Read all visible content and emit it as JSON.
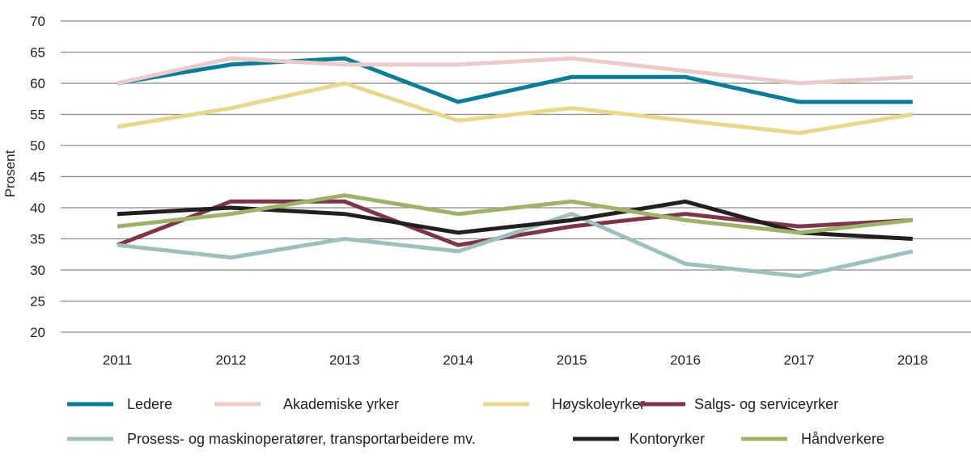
{
  "chart_data": {
    "type": "line",
    "title": "",
    "xlabel": "",
    "ylabel": "Prosent",
    "ylim": [
      20,
      70
    ],
    "yticks": [
      20,
      25,
      30,
      35,
      40,
      45,
      50,
      55,
      60,
      65,
      70
    ],
    "categories": [
      "2011",
      "2012",
      "2013",
      "2014",
      "2015",
      "2016",
      "2017",
      "2018"
    ],
    "grid": "horizontal",
    "legend_placement": "bottom",
    "series": [
      {
        "name": "Ledere",
        "color": "#0a7d96",
        "values": [
          60,
          63,
          64,
          57,
          61,
          61,
          57,
          57
        ]
      },
      {
        "name": "Akademiske yrker",
        "color": "#ebcaca",
        "values": [
          60,
          64,
          63,
          63,
          64,
          62,
          60,
          61
        ]
      },
      {
        "name": "Høyskoleyrker",
        "color": "#e8d88e",
        "values": [
          53,
          56,
          60,
          54,
          56,
          54,
          52,
          55
        ]
      },
      {
        "name": "Salgs- og serviceyrker",
        "color": "#7f3548",
        "values": [
          34,
          41,
          41,
          34,
          37,
          39,
          37,
          38
        ]
      },
      {
        "name": "Prosess- og maskinoperatører, transportarbeidere mv.",
        "color": "#9dbfbd",
        "values": [
          34,
          32,
          35,
          33,
          39,
          31,
          29,
          33
        ]
      },
      {
        "name": "Kontoryrker",
        "color": "#231f1e",
        "values": [
          39,
          40,
          39,
          36,
          38,
          41,
          36,
          35
        ]
      },
      {
        "name": "Håndverkere",
        "color": "#9db26a",
        "values": [
          37,
          39,
          42,
          39,
          41,
          38,
          36,
          38
        ]
      }
    ]
  }
}
